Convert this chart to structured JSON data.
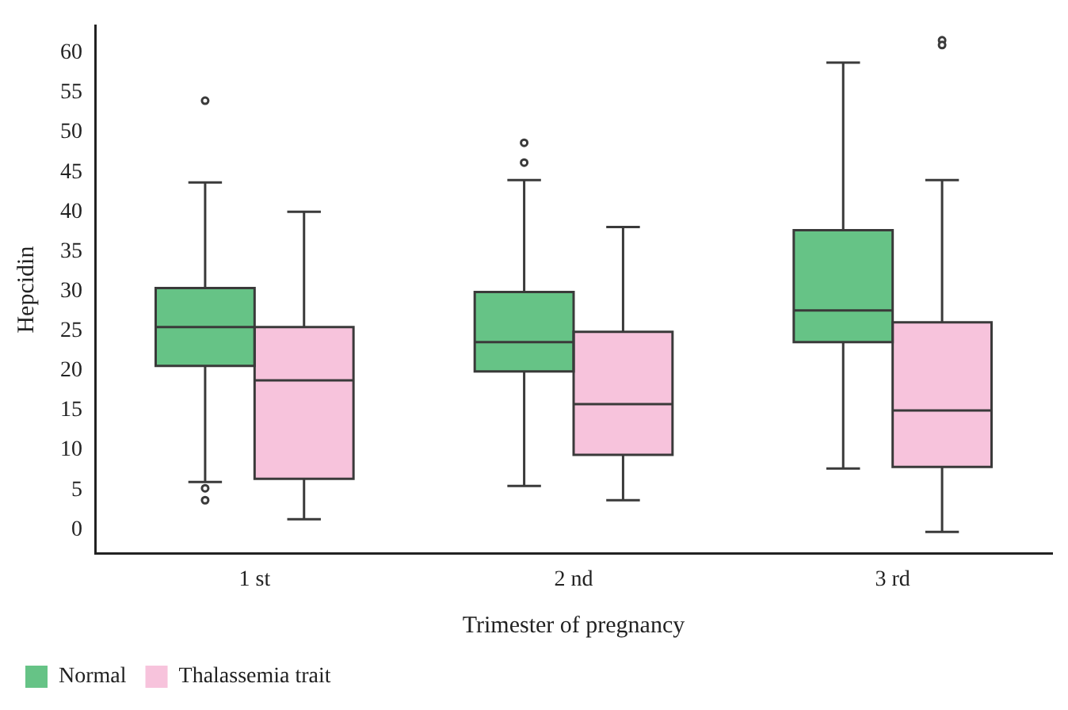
{
  "chart_data": {
    "type": "box",
    "xlabel": "Trimester of pregnancy",
    "ylabel": "Hepcidin",
    "categories": [
      "1 st",
      "2 nd",
      "3 rd"
    ],
    "ylim": [
      -3,
      63.4
    ],
    "yticks": [
      0,
      5,
      10,
      15,
      20,
      25,
      30,
      35,
      40,
      45,
      50,
      55,
      60
    ],
    "grid": false,
    "legend": "bottom left",
    "series": [
      {
        "name": "Normal",
        "color": "#66c386",
        "boxes": [
          {
            "low": 6.0,
            "q1": 20.6,
            "median": 25.5,
            "q3": 30.4,
            "high": 43.7,
            "outliers": [
              54.0,
              5.2,
              3.7
            ]
          },
          {
            "low": 5.5,
            "q1": 19.9,
            "median": 23.6,
            "q3": 29.9,
            "high": 44.0,
            "outliers": [
              48.7,
              46.2
            ]
          },
          {
            "low": 7.7,
            "q1": 23.6,
            "median": 27.6,
            "q3": 37.7,
            "high": 58.8
          }
        ]
      },
      {
        "name": "Thalassemia trait",
        "color": "#f7c3dc",
        "boxes": [
          {
            "low": 1.3,
            "q1": 6.4,
            "median": 18.8,
            "q3": 25.5,
            "high": 40.0
          },
          {
            "low": 3.7,
            "q1": 9.4,
            "median": 15.8,
            "q3": 24.9,
            "high": 38.1
          },
          {
            "low": -0.3,
            "q1": 7.9,
            "median": 15.0,
            "q3": 26.1,
            "high": 44.0,
            "outliers": [
              61.6,
              61.0
            ]
          }
        ]
      }
    ]
  }
}
